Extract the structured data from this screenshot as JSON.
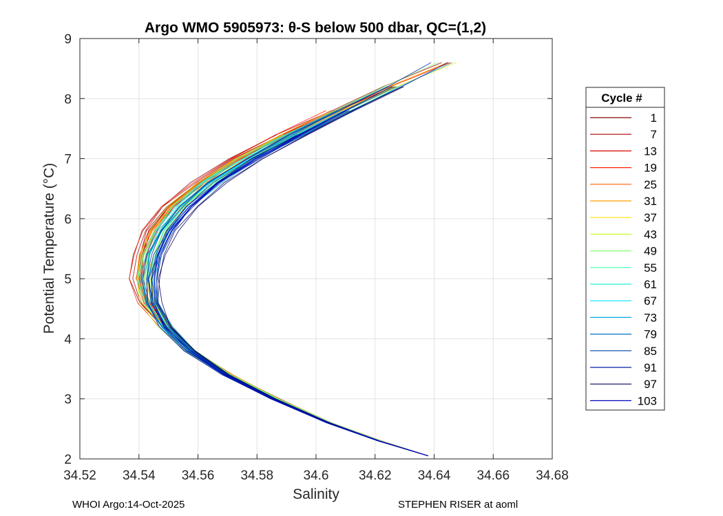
{
  "chart_data": {
    "type": "line",
    "title": "Argo WMO 5905973: θ-S below 500 dbar,  QC=(1,2)",
    "xlabel": "Salinity",
    "ylabel": "Potential Temperature (°C)",
    "xlim": [
      34.52,
      34.68
    ],
    "ylim": [
      2,
      9
    ],
    "xticks": [
      34.52,
      34.54,
      34.56,
      34.58,
      34.6,
      34.62,
      34.64,
      34.66,
      34.68
    ],
    "xtick_labels": [
      "34.52",
      "34.54",
      "34.56",
      "34.58",
      "34.6",
      "34.62",
      "34.64",
      "34.66",
      "34.68"
    ],
    "yticks": [
      2,
      3,
      4,
      5,
      6,
      7,
      8,
      9
    ],
    "ytick_labels": [
      "2",
      "3",
      "4",
      "5",
      "6",
      "7",
      "8",
      "9"
    ],
    "grid": true,
    "legend": {
      "title": "Cycle #",
      "placement": "outside-right",
      "entries": [
        {
          "name": "1",
          "color": "#800000"
        },
        {
          "name": "7",
          "color": "#b00000"
        },
        {
          "name": "13",
          "color": "#e00000"
        },
        {
          "name": "19",
          "color": "#ff2000"
        },
        {
          "name": "25",
          "color": "#ff6000"
        },
        {
          "name": "31",
          "color": "#ffa000"
        },
        {
          "name": "37",
          "color": "#ffe000"
        },
        {
          "name": "43",
          "color": "#c8ff30"
        },
        {
          "name": "49",
          "color": "#80ff70"
        },
        {
          "name": "55",
          "color": "#40ffb0"
        },
        {
          "name": "61",
          "color": "#20f0d0"
        },
        {
          "name": "67",
          "color": "#00e0ff"
        },
        {
          "name": "73",
          "color": "#00a8e0"
        },
        {
          "name": "79",
          "color": "#0070c0"
        },
        {
          "name": "85",
          "color": "#0040b0"
        },
        {
          "name": "91",
          "color": "#0020a0"
        },
        {
          "name": "97",
          "color": "#000060"
        },
        {
          "name": "103",
          "color": "#0000c0"
        }
      ]
    },
    "profile_shape": {
      "temperature": [
        2.05,
        2.3,
        2.6,
        3.0,
        3.4,
        3.8,
        4.2,
        4.6,
        5.0,
        5.4,
        5.8,
        6.2,
        6.6,
        7.0,
        7.4,
        7.8,
        8.2,
        8.6
      ],
      "salinity_early": [
        34.638,
        34.622,
        34.605,
        34.587,
        34.571,
        34.558,
        34.549,
        34.542,
        34.539,
        34.54,
        34.543,
        34.549,
        34.559,
        34.572,
        34.588,
        34.606,
        34.624,
        34.645
      ],
      "salinity_late": [
        34.638,
        34.621,
        34.604,
        34.585,
        34.569,
        34.557,
        34.549,
        34.545,
        34.545,
        34.547,
        34.551,
        34.558,
        34.567,
        34.58,
        34.595,
        34.611,
        34.627,
        34.642
      ]
    }
  },
  "footer": {
    "left": "WHOI Argo:14-Oct-2025",
    "right": "STEPHEN RISER at aoml"
  }
}
